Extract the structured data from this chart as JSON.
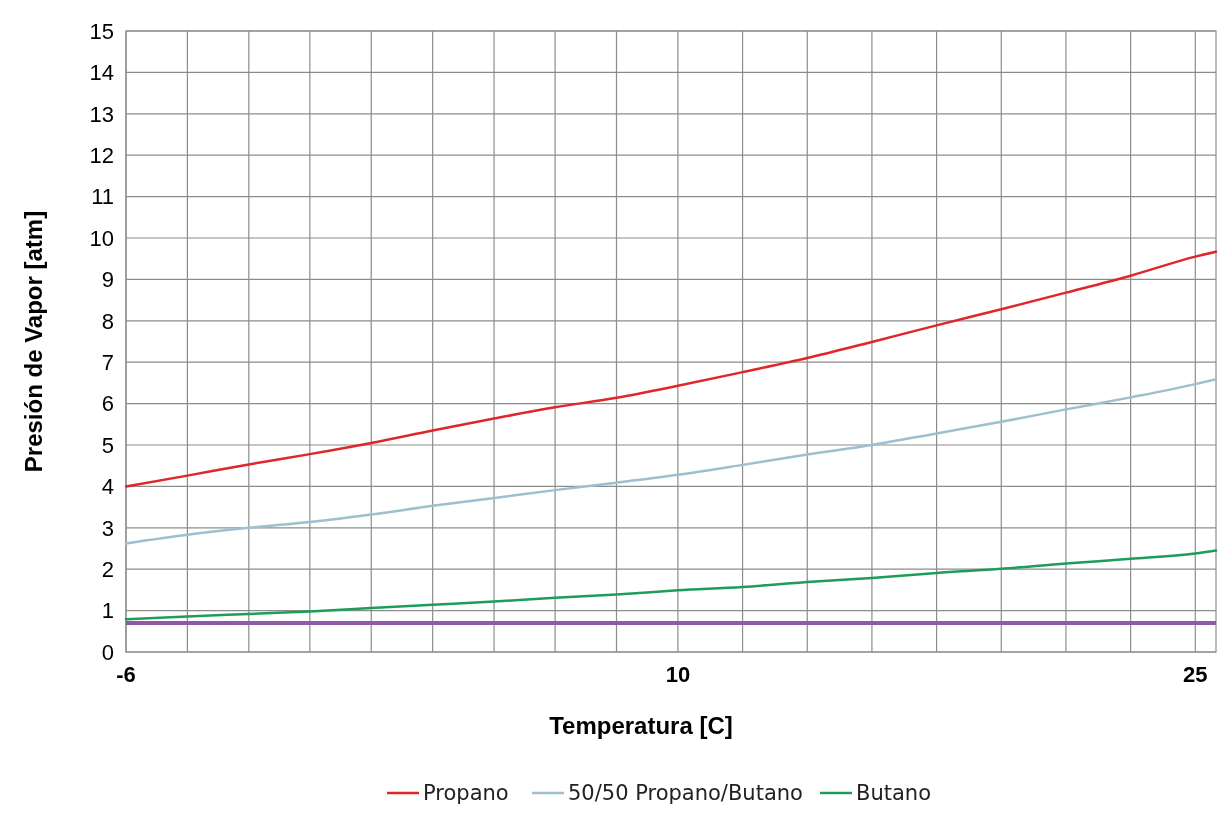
{
  "chart_data": {
    "type": "line",
    "xlabel": "Temperatura [C]",
    "ylabel": "Presión de Vapor [atm]",
    "x": [
      -6,
      -4.22,
      -2.44,
      -0.67,
      1.11,
      2.89,
      4.67,
      6.44,
      8.22,
      10,
      11.875,
      13.75,
      15.625,
      17.5,
      19.375,
      21.25,
      23.125,
      25,
      25.6
    ],
    "series": [
      {
        "name": "Propano",
        "color": "#e0262b",
        "values": [
          4.0,
          4.26,
          4.53,
          4.78,
          5.05,
          5.35,
          5.64,
          5.91,
          6.14,
          6.43,
          6.76,
          7.1,
          7.49,
          7.89,
          8.28,
          8.68,
          9.09,
          9.55,
          9.67
        ]
      },
      {
        "name": "50/50 Propano/Butano",
        "color": "#9dbfd0",
        "values": [
          2.62,
          2.83,
          3.0,
          3.14,
          3.32,
          3.53,
          3.72,
          3.91,
          4.09,
          4.28,
          4.52,
          4.77,
          5.0,
          5.28,
          5.56,
          5.86,
          6.15,
          6.47,
          6.59
        ]
      },
      {
        "name": "Butano",
        "color": "#1e9c5a",
        "values": [
          0.79,
          0.86,
          0.92,
          0.98,
          1.06,
          1.14,
          1.22,
          1.31,
          1.39,
          1.49,
          1.57,
          1.69,
          1.79,
          1.91,
          2.01,
          2.14,
          2.25,
          2.38,
          2.45
        ]
      }
    ],
    "ref_lines": [
      {
        "axis": "y",
        "value": 0.7,
        "color": "#8e5aa8"
      }
    ],
    "xlim": [
      -6,
      25.6
    ],
    "xticks": [
      -6,
      {
        "value": -4.22,
        "label": null
      },
      {
        "value": -2.44,
        "label": null
      },
      {
        "value": -0.67,
        "label": null
      },
      {
        "value": 1.11,
        "label": null
      },
      {
        "value": 2.89,
        "label": null
      },
      {
        "value": 4.67,
        "label": null
      },
      {
        "value": 6.44,
        "label": null
      },
      {
        "value": 8.22,
        "label": null
      },
      10,
      {
        "value": 11.875,
        "label": null
      },
      {
        "value": 13.75,
        "label": null
      },
      {
        "value": 15.625,
        "label": null
      },
      {
        "value": 17.5,
        "label": null
      },
      {
        "value": 19.375,
        "label": null
      },
      {
        "value": 21.25,
        "label": null
      },
      {
        "value": 23.125,
        "label": null
      },
      25
    ],
    "ylim": [
      0,
      15
    ],
    "yticks": [
      0,
      1,
      2,
      3,
      4,
      5,
      6,
      7,
      8,
      9,
      10,
      11,
      12,
      13,
      14,
      15
    ],
    "grid": true,
    "legend": "bottom",
    "line_style": "solid"
  }
}
